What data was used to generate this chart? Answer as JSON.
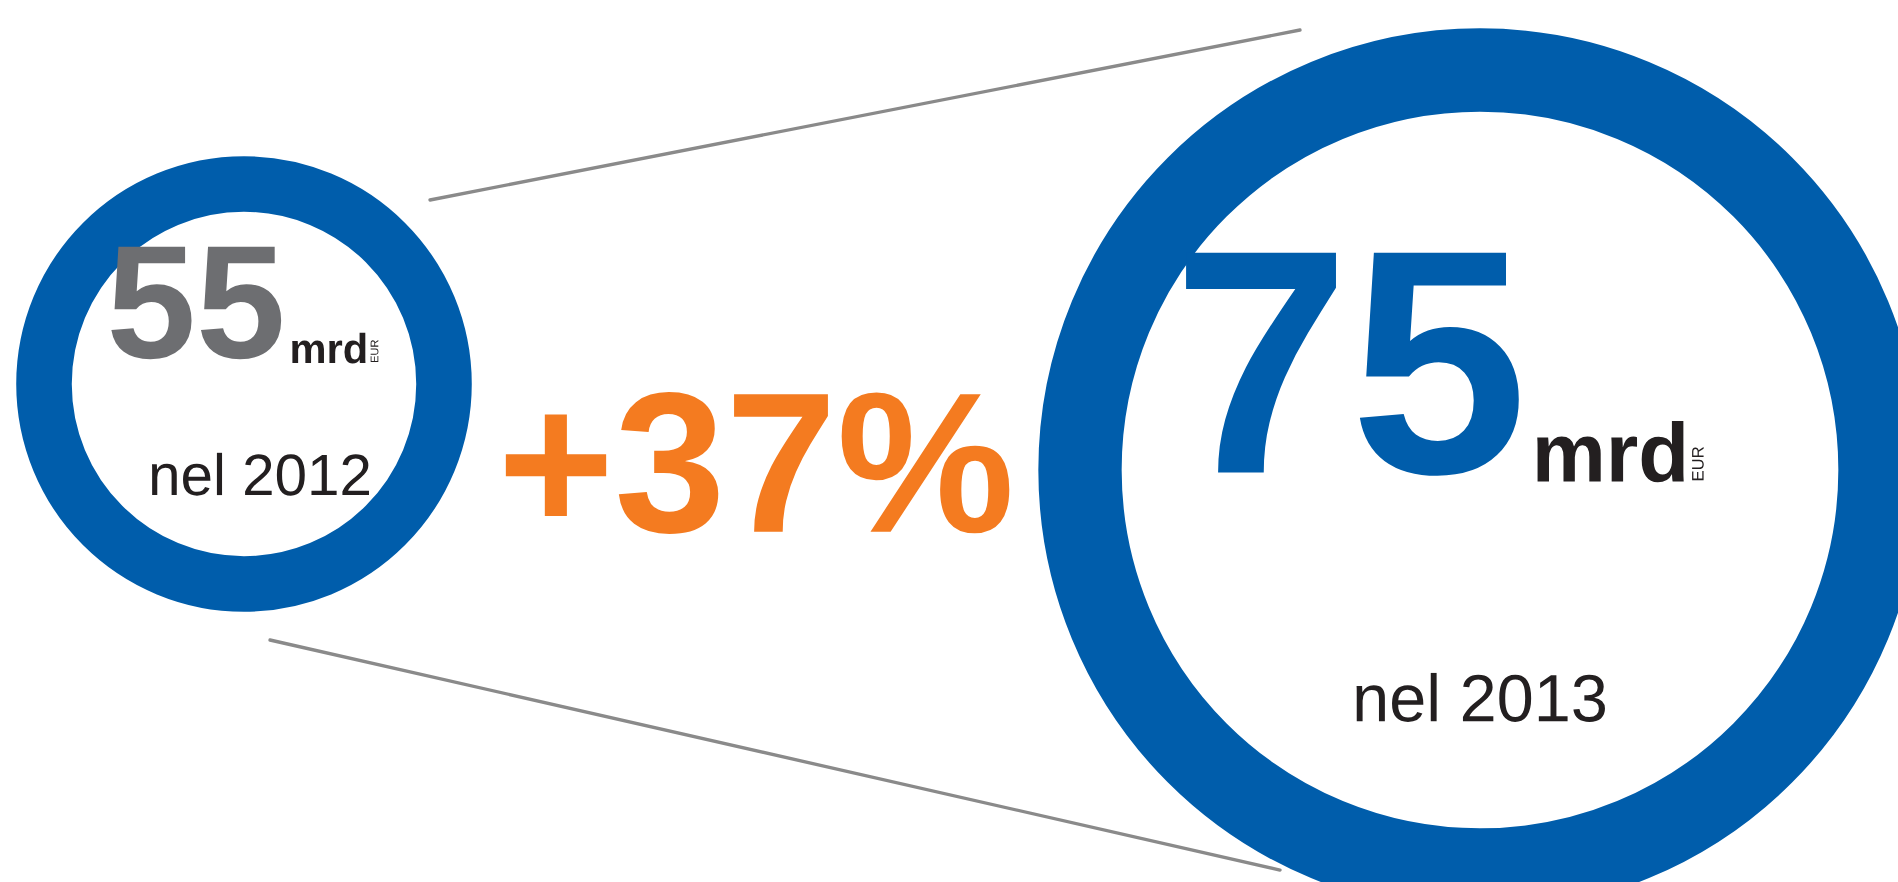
{
  "chart_data": {
    "type": "other",
    "categories": [
      "nel 2012",
      "nel 2013"
    ],
    "values": [
      55,
      75
    ],
    "data_labels": true,
    "colors": [
      "#005dab",
      "#005dab"
    ],
    "annotations": [
      "mrd",
      "EUR",
      "+37%"
    ]
  }
}
